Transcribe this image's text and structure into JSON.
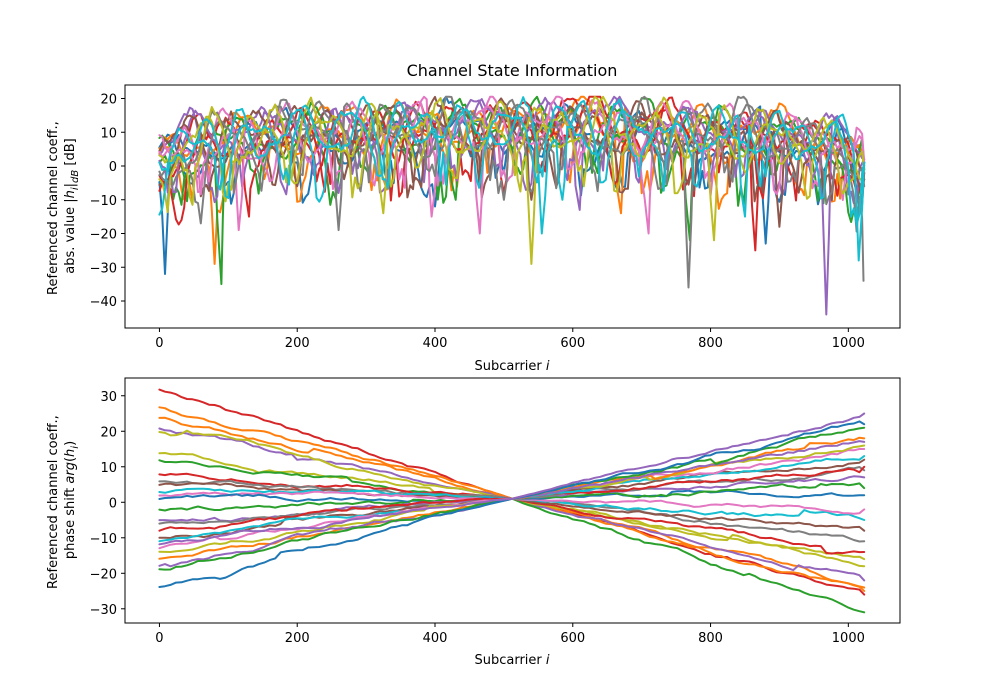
{
  "figure": {
    "title": "Channel State Information"
  },
  "chart_data": [
    {
      "type": "line",
      "title": "Channel State Information",
      "xlabel": "Subcarrier i",
      "ylabel_line1": "Referenced channel coeff.,",
      "ylabel_line2": "abs. value |h_i|_dB [dB]",
      "xlim": [
        -50,
        1075
      ],
      "ylim": [
        -48,
        24
      ],
      "xticks": [
        0,
        200,
        400,
        600,
        800,
        1000
      ],
      "yticks": [
        -40,
        -30,
        -20,
        -10,
        0,
        10,
        20
      ],
      "n_subcarriers": 1024,
      "legend": "none",
      "grid": false,
      "colors": [
        "#1f77b4",
        "#ff7f0e",
        "#2ca02c",
        "#d62728",
        "#9467bd",
        "#8c564b",
        "#e377c2",
        "#7f7f7f",
        "#bcbd22",
        "#17becf"
      ],
      "series": [
        {
          "color": "#1f77b4",
          "values": [
            -2,
            6,
            4,
            9,
            11,
            7,
            12,
            8,
            13,
            10,
            5,
            12,
            14,
            9,
            11,
            15,
            8,
            13,
            16,
            10,
            12,
            14,
            9,
            13,
            11,
            6,
            10,
            13,
            8,
            11,
            12,
            7,
            10,
            6,
            9,
            3
          ],
          "dips": [
            [
              8,
              -32
            ],
            [
              400,
              -12
            ],
            [
              880,
              -23
            ]
          ]
        },
        {
          "color": "#ff7f0e",
          "values": [
            0,
            7,
            10,
            4,
            12,
            9,
            14,
            11,
            8,
            15,
            13,
            10,
            16,
            12,
            9,
            14,
            17,
            11,
            13,
            18,
            15,
            19,
            12,
            16,
            10,
            14,
            11,
            13,
            9,
            12,
            10,
            14,
            8,
            11,
            7,
            2
          ],
          "dips": [
            [
              80,
              -29
            ],
            [
              330,
              -7
            ],
            [
              670,
              -14
            ]
          ]
        },
        {
          "color": "#2ca02c",
          "values": [
            3,
            9,
            5,
            11,
            8,
            13,
            10,
            14,
            12,
            9,
            15,
            11,
            13,
            16,
            10,
            14,
            12,
            17,
            13,
            15,
            11,
            14,
            16,
            12,
            15,
            13,
            10,
            14,
            12,
            9,
            11,
            13,
            8,
            10,
            6,
            1
          ],
          "dips": [
            [
              90,
              -35
            ],
            [
              430,
              -10
            ],
            [
              770,
              -22
            ]
          ]
        },
        {
          "color": "#d62728",
          "values": [
            -4,
            4,
            8,
            11,
            9,
            12,
            7,
            13,
            11,
            14,
            9,
            12,
            10,
            15,
            13,
            11,
            16,
            14,
            12,
            17,
            15,
            20,
            14,
            16,
            12,
            15,
            13,
            11,
            14,
            10,
            12,
            9,
            11,
            8,
            10,
            0
          ],
          "dips": [
            [
              130,
              -15
            ],
            [
              500,
              -8
            ],
            [
              865,
              -25
            ]
          ]
        },
        {
          "color": "#9467bd",
          "values": [
            6,
            10,
            12,
            8,
            14,
            11,
            13,
            9,
            15,
            12,
            16,
            10,
            14,
            13,
            17,
            12,
            15,
            18,
            11,
            14,
            16,
            13,
            19,
            15,
            12,
            17,
            14,
            11,
            13,
            15,
            12,
            10,
            13,
            9,
            11,
            4
          ],
          "dips": [
            [
              260,
              -8
            ],
            [
              610,
              -13
            ],
            [
              968,
              -44
            ]
          ]
        },
        {
          "color": "#8c564b",
          "values": [
            1,
            8,
            11,
            6,
            13,
            10,
            12,
            15,
            9,
            13,
            11,
            14,
            12,
            10,
            15,
            13,
            11,
            16,
            12,
            14,
            13,
            11,
            15,
            12,
            14,
            10,
            13,
            11,
            9,
            12,
            10,
            11,
            8,
            9,
            5,
            -2
          ],
          "dips": [
            [
              200,
              -6
            ],
            [
              540,
              -10
            ],
            [
              900,
              -18
            ]
          ]
        },
        {
          "color": "#e377c2",
          "values": [
            8,
            5,
            11,
            9,
            13,
            7,
            14,
            12,
            10,
            15,
            13,
            11,
            14,
            16,
            12,
            15,
            13,
            17,
            14,
            12,
            16,
            13,
            15,
            11,
            14,
            12,
            16,
            13,
            10,
            14,
            12,
            13,
            10,
            12,
            9,
            3
          ],
          "dips": [
            [
              115,
              -19
            ],
            [
              395,
              -15
            ],
            [
              465,
              -20
            ],
            [
              710,
              -20
            ]
          ]
        },
        {
          "color": "#7f7f7f",
          "values": [
            -3,
            2,
            7,
            10,
            12,
            9,
            14,
            16,
            19,
            13,
            11,
            15,
            12,
            14,
            10,
            16,
            13,
            12,
            15,
            11,
            14,
            12,
            13,
            10,
            15,
            12,
            11,
            14,
            13,
            18,
            12,
            10,
            11,
            7,
            8,
            -4
          ],
          "dips": [
            [
              60,
              -17
            ],
            [
              260,
              -19
            ],
            [
              500,
              -10
            ],
            [
              768,
              -36
            ],
            [
              1022,
              -34
            ]
          ]
        },
        {
          "color": "#bcbd22",
          "values": [
            2,
            6,
            9,
            12,
            8,
            11,
            13,
            10,
            14,
            12,
            9,
            13,
            15,
            11,
            14,
            12,
            10,
            15,
            13,
            11,
            14,
            12,
            16,
            13,
            11,
            14,
            12,
            10,
            13,
            11,
            12,
            9,
            11,
            8,
            10,
            1
          ],
          "dips": [
            [
              325,
              -14
            ],
            [
              540,
              -29
            ],
            [
              805,
              -22
            ]
          ]
        },
        {
          "color": "#17becf",
          "values": [
            4,
            9,
            7,
            11,
            13,
            9,
            12,
            14,
            10,
            13,
            15,
            11,
            14,
            12,
            16,
            13,
            11,
            15,
            14,
            12,
            13,
            15,
            11,
            14,
            12,
            13,
            10,
            12,
            14,
            11,
            13,
            10,
            12,
            9,
            10,
            3
          ],
          "dips": [
            [
              555,
              -20
            ],
            [
              585,
              -10
            ],
            [
              850,
              -15
            ],
            [
              1015,
              -28
            ]
          ]
        }
      ]
    },
    {
      "type": "line",
      "xlabel": "Subcarrier i",
      "ylabel_line1": "Referenced channel coeff.,",
      "ylabel_line2": "phase shift arg(h_i)",
      "xlim": [
        -50,
        1075
      ],
      "ylim": [
        -34,
        35
      ],
      "xticks": [
        0,
        200,
        400,
        600,
        800,
        1000
      ],
      "yticks": [
        -30,
        -20,
        -10,
        0,
        10,
        20,
        30
      ],
      "n_subcarriers": 1024,
      "legend": "none",
      "grid": false,
      "pivot": [
        512,
        1
      ],
      "colors": [
        "#1f77b4",
        "#ff7f0e",
        "#2ca02c",
        "#d62728",
        "#9467bd",
        "#8c564b",
        "#e377c2",
        "#7f7f7f",
        "#bcbd22",
        "#17becf"
      ],
      "series": [
        {
          "color": "#d62728",
          "start": 32,
          "end": -26
        },
        {
          "color": "#ff7f0e",
          "start": 27,
          "end": -25
        },
        {
          "color": "#ff7f0e",
          "start": 24,
          "end": -24
        },
        {
          "color": "#9467bd",
          "start": 21,
          "end": -22
        },
        {
          "color": "#bcbd22",
          "start": 20,
          "end": -18
        },
        {
          "color": "#bcbd22",
          "start": 14,
          "end": -16
        },
        {
          "color": "#2ca02c",
          "start": 12,
          "end": -31
        },
        {
          "color": "#d62728",
          "start": 8,
          "end": -14
        },
        {
          "color": "#7f7f7f",
          "start": 6,
          "end": -11
        },
        {
          "color": "#8c564b",
          "start": 5,
          "end": -8
        },
        {
          "color": "#17becf",
          "start": 3,
          "end": -5
        },
        {
          "color": "#e377c2",
          "start": 2,
          "end": -2
        },
        {
          "color": "#1f77b4",
          "start": 1,
          "end": 2
        },
        {
          "color": "#2ca02c",
          "start": -2,
          "end": 4
        },
        {
          "color": "#9467bd",
          "start": -5,
          "end": 7
        },
        {
          "color": "#7f7f7f",
          "start": -6,
          "end": 9
        },
        {
          "color": "#d62728",
          "start": -8,
          "end": 10
        },
        {
          "color": "#8c564b",
          "start": -10,
          "end": 12
        },
        {
          "color": "#17becf",
          "start": -11,
          "end": 13
        },
        {
          "color": "#e377c2",
          "start": -13,
          "end": 15
        },
        {
          "color": "#bcbd22",
          "start": -14,
          "end": 16
        },
        {
          "color": "#ff7f0e",
          "start": -16,
          "end": 18
        },
        {
          "color": "#9467bd",
          "start": -18,
          "end": 17
        },
        {
          "color": "#2ca02c",
          "start": -19,
          "end": 21
        },
        {
          "color": "#1f77b4",
          "start": -24,
          "end": 22
        },
        {
          "color": "#9467bd",
          "start": -12,
          "end": 25
        }
      ]
    }
  ]
}
